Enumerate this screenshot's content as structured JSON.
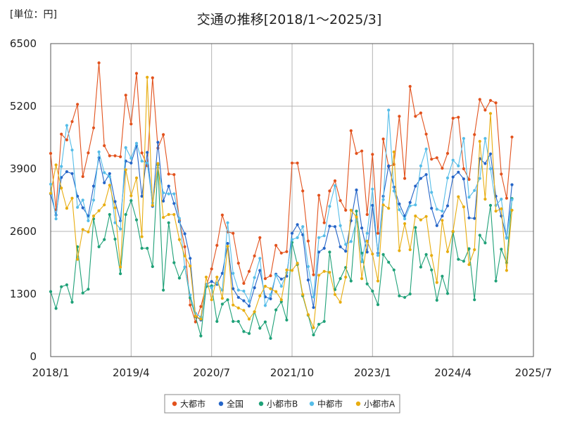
{
  "chart_data": {
    "type": "line",
    "title": "交通の推移[2018/1～2025/3]",
    "unit_label": "[単位：円]",
    "xlabel": "",
    "ylabel": "",
    "ylim": [
      0,
      6500
    ],
    "y_ticks": [
      0,
      1300,
      2600,
      3900,
      5200,
      6500
    ],
    "y_tick_labels": [
      "0",
      "1300",
      "2600",
      "3900",
      "5200",
      "6500"
    ],
    "x_start": "2018/1",
    "x_ticks": [
      0,
      15,
      30,
      45,
      60,
      75,
      90
    ],
    "x_tick_labels": [
      "2018/1",
      "2019/4",
      "2020/7",
      "2021/10",
      "2023/1",
      "2024/4",
      "2025/7"
    ],
    "grid": true,
    "legend_position": "bottom",
    "series": [
      {
        "name": "大都市",
        "color": "#e2521d",
        "values": [
          4220,
          3050,
          4620,
          4500,
          4880,
          5240,
          3740,
          4230,
          4750,
          6100,
          4380,
          4170,
          4170,
          4150,
          5430,
          4830,
          5880,
          4230,
          3960,
          5790,
          4330,
          4610,
          3790,
          3780,
          2830,
          2280,
          1070,
          720,
          1040,
          1460,
          1820,
          2310,
          2940,
          2590,
          2560,
          1940,
          1520,
          1770,
          2090,
          2470,
          1620,
          1680,
          2310,
          2150,
          2180,
          4020,
          4020,
          3440,
          2400,
          1700,
          3350,
          2780,
          3440,
          3650,
          3240,
          3040,
          4690,
          4220,
          4270,
          2950,
          4200,
          2560,
          4520,
          3950,
          3990,
          4990,
          3700,
          5610,
          4990,
          5060,
          4620,
          4100,
          4130,
          3910,
          4220,
          4950,
          4970,
          3900,
          3680,
          4610,
          5340,
          5120,
          5320,
          5270,
          3790,
          3290,
          4560
        ]
      },
      {
        "name": "全国",
        "color": "#2565c8",
        "values": [
          3380,
          2940,
          3720,
          3840,
          3800,
          3330,
          3090,
          2920,
          3540,
          4130,
          3610,
          3800,
          3220,
          2820,
          4060,
          4020,
          4380,
          3330,
          4240,
          3120,
          4450,
          3230,
          3540,
          3180,
          2800,
          2550,
          2040,
          840,
          760,
          1500,
          1560,
          1500,
          1730,
          2350,
          1410,
          1230,
          1160,
          1050,
          1430,
          1790,
          1240,
          1200,
          1710,
          1610,
          1670,
          2560,
          2740,
          2530,
          1590,
          1020,
          2170,
          2250,
          2710,
          2700,
          2280,
          2190,
          2820,
          3460,
          2670,
          2170,
          3140,
          2150,
          3330,
          3960,
          3520,
          3170,
          2920,
          3200,
          3540,
          3700,
          3780,
          3080,
          2720,
          2920,
          3130,
          3730,
          3830,
          3690,
          2880,
          2870,
          4110,
          4010,
          4210,
          3330,
          2920,
          2470,
          3570
        ]
      },
      {
        "name": "小都市B",
        "color": "#1fa178",
        "values": [
          1350,
          1000,
          1450,
          1490,
          1130,
          2280,
          1320,
          1400,
          2860,
          2280,
          2430,
          2950,
          2440,
          1720,
          2950,
          3240,
          2840,
          2250,
          2250,
          1870,
          3980,
          1380,
          2780,
          1950,
          1630,
          1860,
          1220,
          830,
          430,
          1450,
          1470,
          730,
          1090,
          1180,
          730,
          730,
          520,
          480,
          930,
          590,
          720,
          380,
          970,
          1140,
          760,
          2370,
          1910,
          1260,
          860,
          450,
          670,
          730,
          2170,
          1390,
          1620,
          1850,
          1570,
          3020,
          2150,
          1510,
          1360,
          1080,
          2120,
          1960,
          1800,
          1260,
          1230,
          1300,
          2680,
          1860,
          2120,
          1800,
          1170,
          1670,
          1310,
          2590,
          2020,
          1980,
          2240,
          1180,
          2520,
          2360,
          3140,
          1570,
          2230,
          1950,
          3280
        ]
      },
      {
        "name": "中都市",
        "color": "#56bde8",
        "values": [
          3580,
          2860,
          3950,
          4800,
          4290,
          3100,
          3250,
          2820,
          3250,
          4250,
          3820,
          3740,
          2780,
          2650,
          4340,
          4120,
          4430,
          4060,
          4020,
          3190,
          3920,
          3400,
          3380,
          3380,
          2870,
          1860,
          1280,
          900,
          820,
          1500,
          1430,
          1530,
          1380,
          2780,
          1730,
          1380,
          1360,
          1150,
          1640,
          2040,
          1060,
          1290,
          1690,
          1460,
          1740,
          2430,
          2470,
          2700,
          1870,
          1240,
          2470,
          2510,
          3120,
          3550,
          2720,
          2330,
          2390,
          2830,
          1970,
          2560,
          3480,
          2100,
          3260,
          5120,
          3440,
          3050,
          2860,
          3130,
          3150,
          3960,
          4310,
          3410,
          3060,
          3020,
          3710,
          4080,
          3960,
          4530,
          3310,
          3450,
          3700,
          4530,
          3900,
          3140,
          3270,
          2460,
          3260
        ]
      },
      {
        "name": "小都市A",
        "color": "#e8ad10",
        "values": [
          3390,
          3980,
          3500,
          3080,
          3290,
          2020,
          2640,
          2590,
          2920,
          3030,
          3150,
          3560,
          3090,
          1860,
          3880,
          3340,
          3710,
          2490,
          5800,
          3140,
          4010,
          2890,
          2950,
          2950,
          2430,
          2090,
          1880,
          840,
          780,
          1650,
          1180,
          1650,
          1210,
          2290,
          1070,
          1010,
          960,
          780,
          930,
          1260,
          1460,
          1410,
          1350,
          1180,
          1800,
          1790,
          1940,
          1290,
          870,
          600,
          1690,
          1770,
          1750,
          1290,
          1130,
          1650,
          3040,
          2900,
          1620,
          2400,
          2130,
          1570,
          3150,
          3080,
          4250,
          2200,
          2760,
          2220,
          2920,
          2840,
          2910,
          2100,
          1540,
          2830,
          2180,
          2600,
          3320,
          3110,
          1910,
          2220,
          4470,
          3270,
          5050,
          3020,
          3070,
          1790,
          3040
        ]
      }
    ]
  }
}
